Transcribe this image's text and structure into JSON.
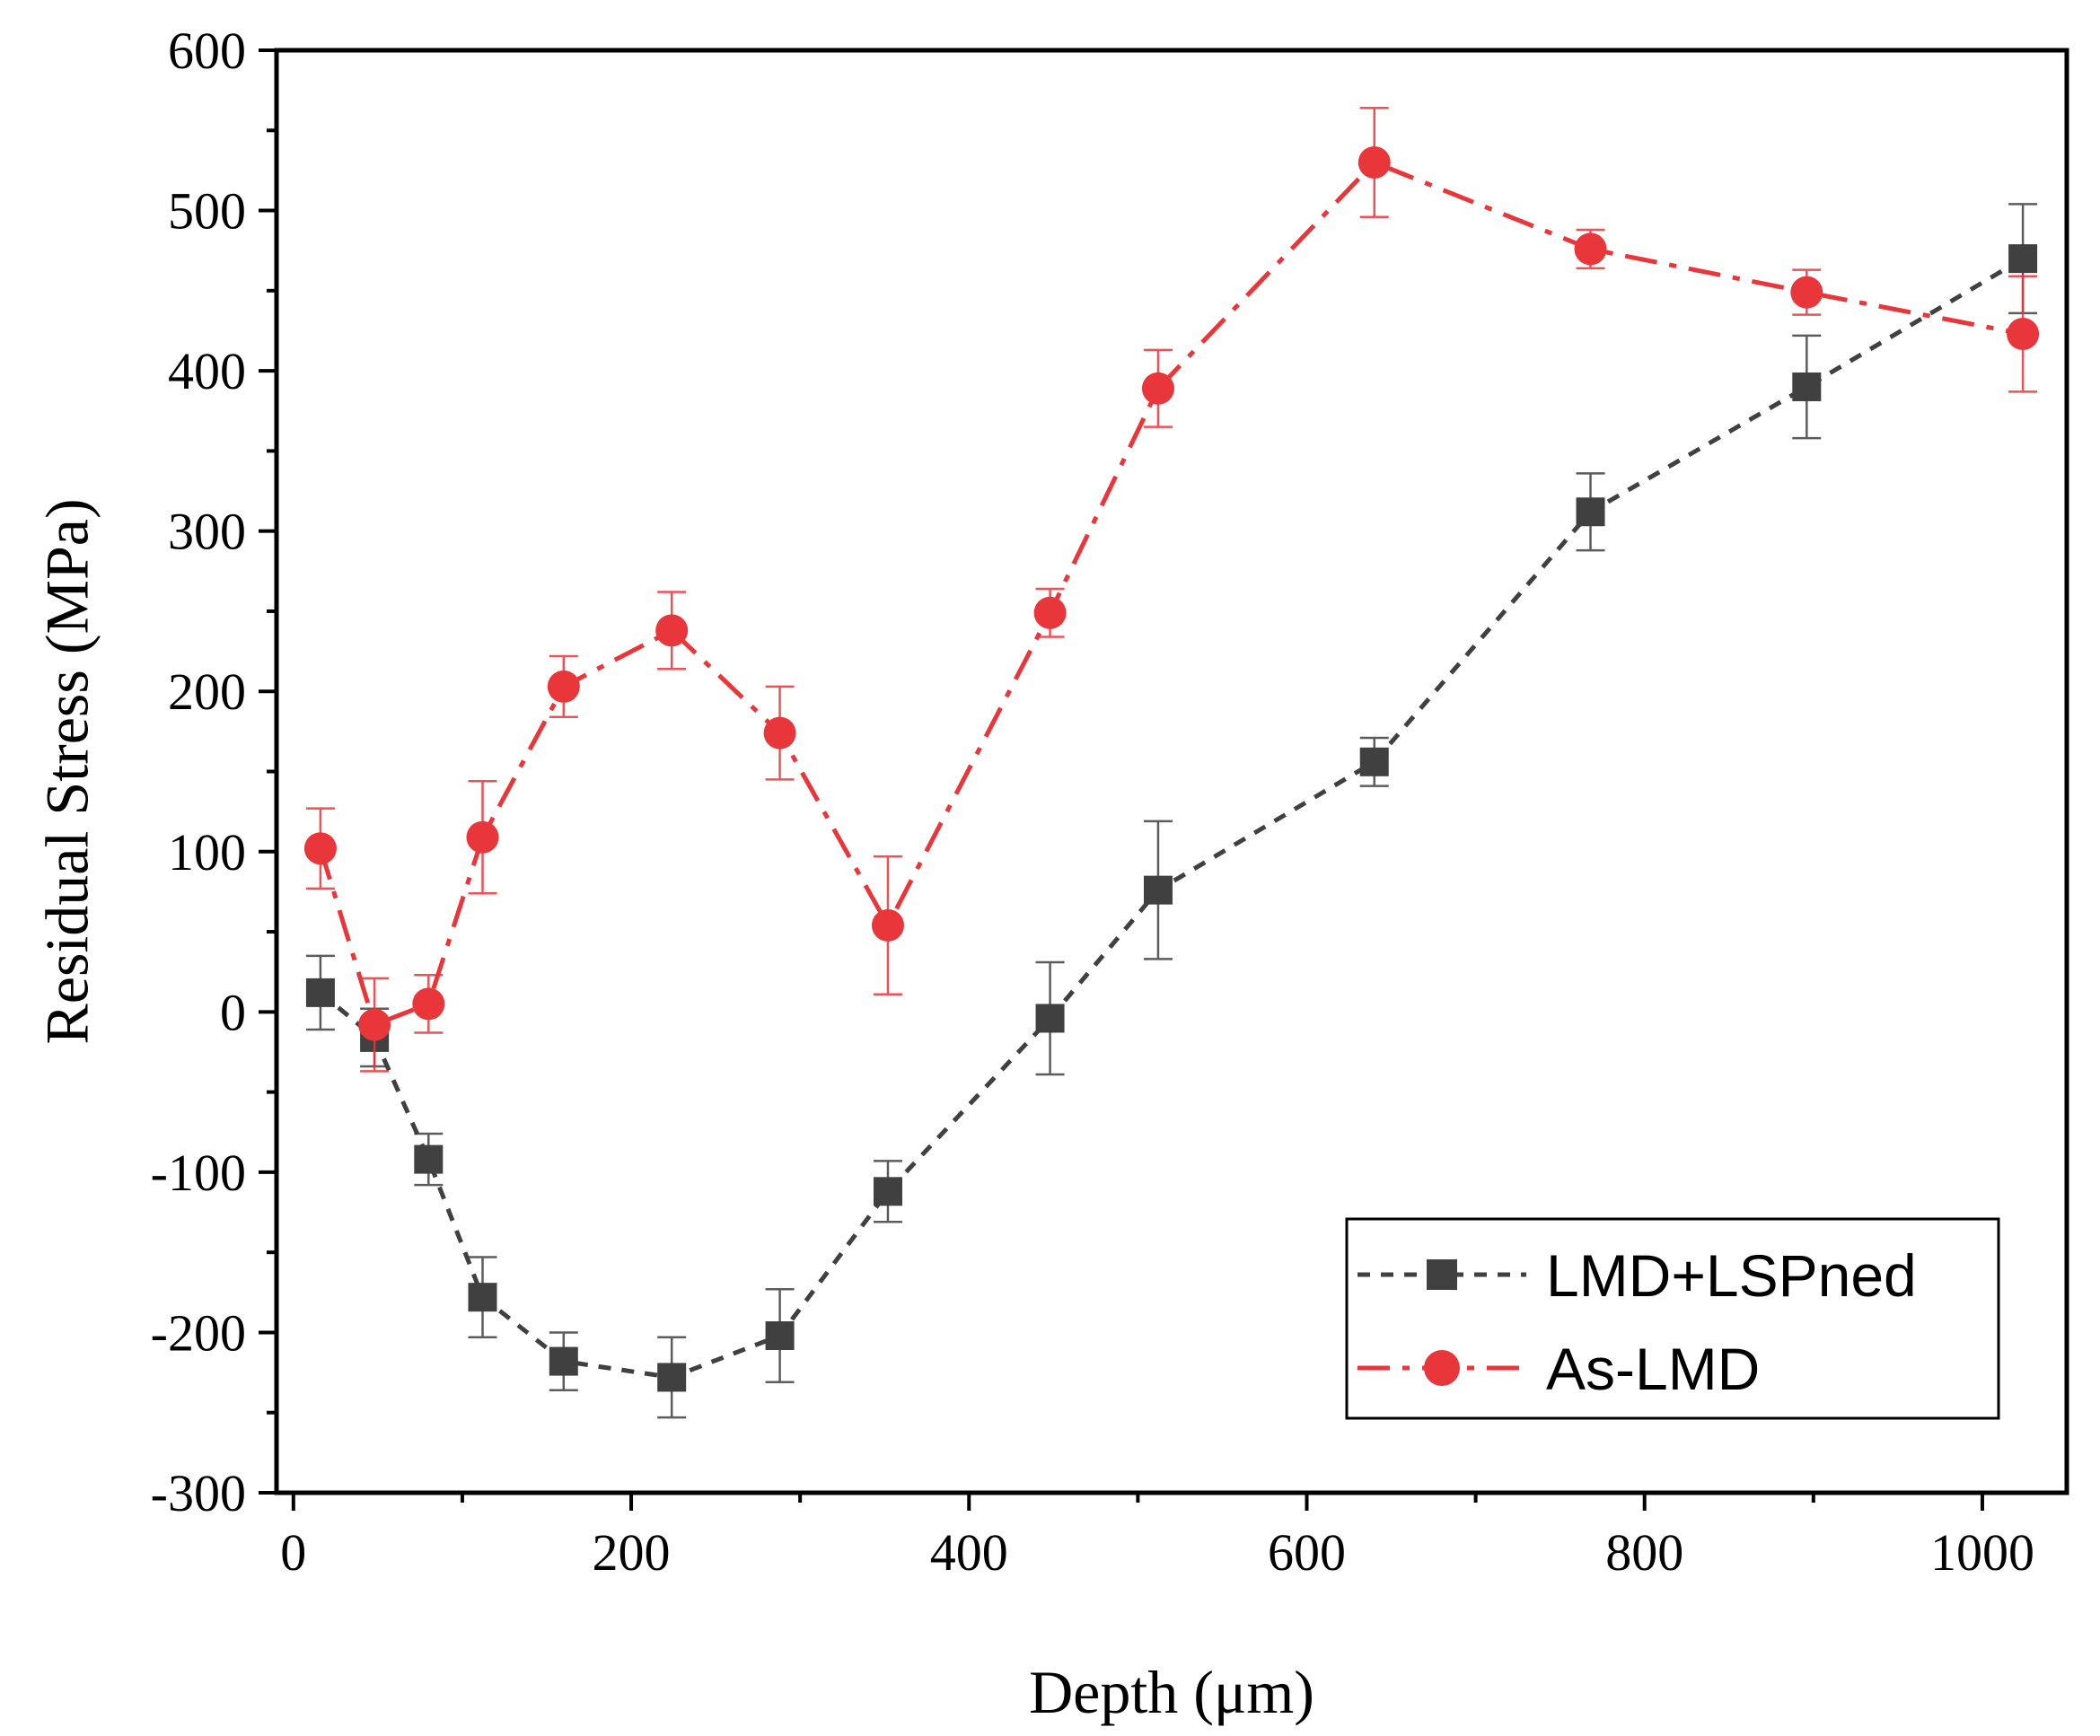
{
  "chart_data": {
    "type": "line",
    "title": "",
    "xlabel": "Depth (μm)",
    "ylabel": "Residual Stress (MPa)",
    "xlim": [
      -10,
      1050
    ],
    "ylim": [
      -300,
      600
    ],
    "xticks": [
      0,
      200,
      400,
      600,
      800,
      1000
    ],
    "yticks": [
      -300,
      -200,
      -100,
      0,
      100,
      200,
      300,
      400,
      500,
      600
    ],
    "grid": false,
    "legend_position": "bottom-right",
    "series": [
      {
        "name": "LMD+LSPned",
        "color": "#404040",
        "marker": "square",
        "line_style": "dashed",
        "x": [
          16,
          48,
          80,
          112,
          160,
          224,
          288,
          352,
          448,
          512,
          640,
          768,
          896,
          1024
        ],
        "y": [
          12,
          -16,
          -92,
          -178,
          -218,
          -228,
          -202,
          -112,
          -4,
          76,
          156,
          312,
          390,
          470
        ],
        "err": [
          23,
          18,
          16,
          25,
          18,
          25,
          29,
          19,
          35,
          43,
          15,
          24,
          32,
          34
        ]
      },
      {
        "name": "As-LMD",
        "color": "#e8363a",
        "marker": "circle",
        "line_style": "dashdot",
        "x": [
          16,
          48,
          80,
          112,
          160,
          224,
          288,
          352,
          448,
          512,
          640,
          768,
          896,
          1024
        ],
        "y": [
          102,
          -8,
          5,
          109,
          203,
          238,
          174,
          54,
          249,
          389,
          530,
          476,
          449,
          423
        ],
        "err": [
          25,
          29,
          18,
          35,
          19,
          24,
          29,
          43,
          15,
          24,
          34,
          12,
          14,
          36
        ]
      }
    ]
  }
}
